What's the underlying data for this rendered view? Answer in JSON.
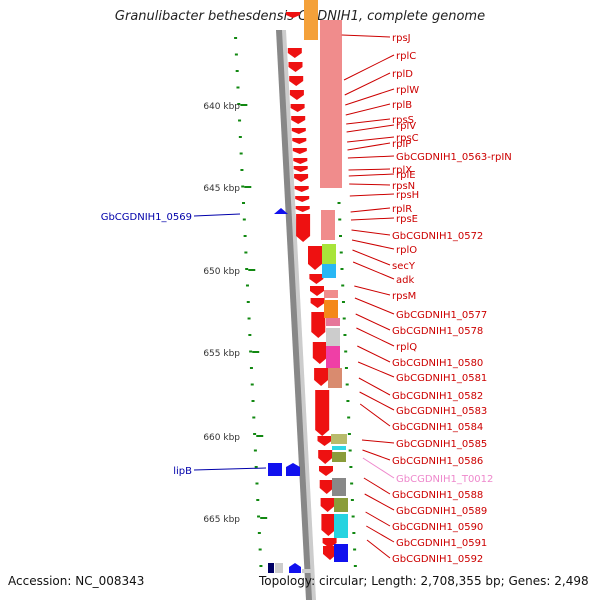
{
  "title": "Granulibacter bethesdensis CGDNIH1, complete genome",
  "footer": {
    "accession": "Accession: NC_008343",
    "topology": "Topology: circular; Length: 2,708,355 bp; Genes: 2,498"
  },
  "colors": {
    "gene_label": "#cc0000",
    "left_label": "#0000aa",
    "pseudo_label": "#ee88cc",
    "tick_dot": "#118811",
    "arrow_red": "#ee1111",
    "arrow_blue": "#1111ee",
    "chromosome_bar": "#888888",
    "tick_label": "#333333"
  },
  "ticks": [
    "640 kbp",
    "645 kbp",
    "650 kbp",
    "655 kbp",
    "660 kbp",
    "665 kbp"
  ],
  "right_labels": [
    "rpsJ",
    "rplC",
    "rplD",
    "rplW",
    "rplB",
    "rplV",
    "rpsS",
    "rpsC",
    "rplP",
    "GbCGDNIH1_0563-rpIN",
    "rplX",
    "rplE",
    "rpsN",
    "rpsH",
    "rplR",
    "rpsE",
    "GbCGDNIH1_0572",
    "rplO",
    "secY",
    "adk",
    "rpsM",
    "GbCGDNIH1_0577",
    "GbCGDNIH1_0578",
    "rplQ",
    "GbCGDNIH1_0580",
    "GbCGDNIH1_0581",
    "GbCGDNIH1_0582",
    "GbCGDNIH1_0583",
    "GbCGDNIH1_0584",
    "GbCGDNIH1_0585",
    "GbCGDNIH1_0586",
    "GbCGDNIH1_T0012",
    "GbCGDNIH1_0588",
    "GbCGDNIH1_0589",
    "GbCGDNIH1_0590",
    "GbCGDNIH1_0591",
    "GbCGDNIH1_0592"
  ],
  "left_labels": [
    "GbCGDNIH1_0569",
    "lipB"
  ],
  "pseudo_label": "GbCGDNIH1_T0012"
}
